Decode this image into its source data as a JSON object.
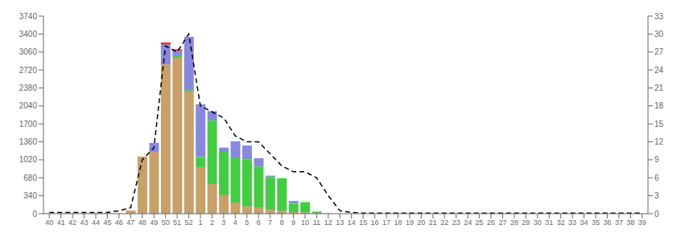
{
  "chart_data": {
    "type": "bar",
    "stacked": true,
    "grid": false,
    "categories": [
      "40",
      "41",
      "42",
      "43",
      "44",
      "45",
      "46",
      "47",
      "48",
      "49",
      "50",
      "51",
      "52",
      "1",
      "2",
      "3",
      "4",
      "5",
      "6",
      "7",
      "8",
      "9",
      "10",
      "11",
      "12",
      "13",
      "14",
      "15",
      "16",
      "17",
      "18",
      "19",
      "20",
      "21",
      "22",
      "23",
      "24",
      "25",
      "26",
      "27",
      "28",
      "29",
      "30",
      "31",
      "32",
      "33",
      "34",
      "35",
      "36",
      "37",
      "38",
      "39"
    ],
    "series": [
      {
        "type": "bar",
        "color": "#c8a06a",
        "values": [
          5,
          5,
          5,
          5,
          5,
          5,
          5,
          60,
          1080,
          1160,
          2820,
          2950,
          2300,
          870,
          560,
          350,
          200,
          130,
          110,
          70,
          50,
          30,
          20,
          10,
          5,
          0,
          0,
          0,
          0,
          0,
          0,
          0,
          0,
          0,
          0,
          0,
          0,
          0,
          0,
          0,
          0,
          0,
          0,
          0,
          0,
          0,
          0,
          0,
          0,
          0,
          0,
          0
        ]
      },
      {
        "type": "bar",
        "color": "#44cc44",
        "values": [
          0,
          0,
          0,
          0,
          0,
          0,
          0,
          0,
          0,
          0,
          0,
          30,
          30,
          200,
          1200,
          820,
          850,
          900,
          780,
          620,
          620,
          160,
          200,
          30,
          0,
          0,
          0,
          0,
          0,
          0,
          0,
          0,
          0,
          0,
          0,
          0,
          0,
          0,
          0,
          0,
          0,
          0,
          0,
          0,
          0,
          0,
          0,
          0,
          0,
          0,
          0,
          0
        ]
      },
      {
        "type": "bar",
        "color": "#8888dd",
        "values": [
          0,
          0,
          0,
          0,
          0,
          0,
          0,
          0,
          0,
          180,
          380,
          100,
          1020,
          1000,
          180,
          80,
          320,
          260,
          160,
          30,
          0,
          50,
          0,
          0,
          0,
          0,
          0,
          0,
          0,
          0,
          0,
          0,
          0,
          0,
          0,
          0,
          0,
          0,
          0,
          0,
          0,
          0,
          0,
          0,
          0,
          0,
          0,
          0,
          0,
          0,
          0,
          0
        ]
      },
      {
        "type": "bar",
        "color": "#dd3333",
        "values": [
          0,
          0,
          0,
          0,
          0,
          0,
          0,
          0,
          0,
          0,
          40,
          30,
          0,
          0,
          0,
          0,
          0,
          0,
          0,
          0,
          0,
          0,
          0,
          0,
          0,
          0,
          0,
          0,
          0,
          0,
          0,
          0,
          0,
          0,
          0,
          0,
          0,
          0,
          0,
          0,
          0,
          0,
          0,
          0,
          0,
          0,
          0,
          0,
          0,
          0,
          0,
          0
        ]
      },
      {
        "type": "line",
        "axis": "y2",
        "color": "#000000",
        "line_style": "dashed",
        "values": [
          0.2,
          0.2,
          0.2,
          0.2,
          0.2,
          0.2,
          0.5,
          1.0,
          9,
          11,
          28,
          27,
          30,
          18,
          17,
          16,
          13,
          12,
          12,
          10,
          8,
          7,
          7,
          6,
          3,
          0.5,
          0.2,
          0.1,
          0.1,
          0.1,
          0.1,
          0.1,
          0.1,
          0.1,
          0.1,
          0.1,
          0.1,
          0.1,
          0.1,
          0.1,
          0.1,
          0.1,
          0.1,
          0.1,
          0.1,
          0.1,
          0.1,
          0.1,
          0.1,
          0.1,
          0.1,
          0.1
        ]
      }
    ],
    "ylim": [
      0,
      3740
    ],
    "yticks": [
      0,
      340,
      680,
      1020,
      1360,
      1700,
      2040,
      2380,
      2720,
      3060,
      3400,
      3740
    ],
    "y2lim": [
      0,
      33
    ],
    "y2ticks": [
      0,
      3,
      6,
      9,
      12,
      15,
      18,
      21,
      24,
      27,
      30,
      33
    ]
  }
}
